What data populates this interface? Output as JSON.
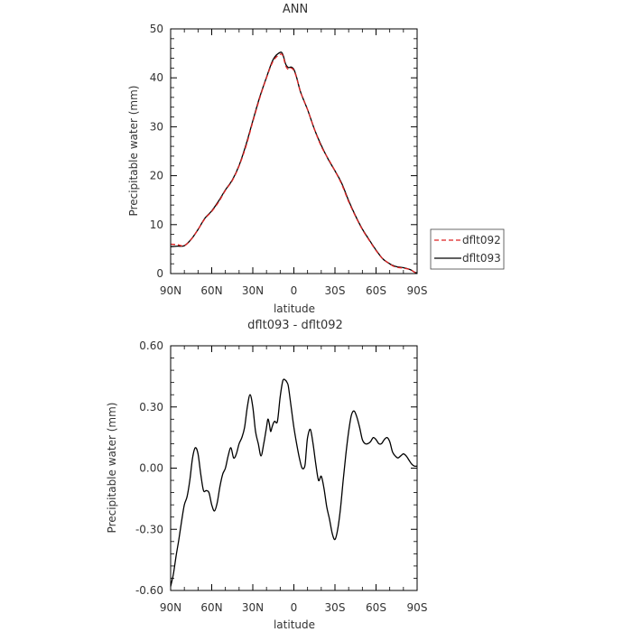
{
  "chart_data": [
    {
      "type": "line",
      "title": "ANN",
      "xlabel": "latitude",
      "ylabel": "Precipitable water (mm)",
      "xlim": [
        90,
        -90
      ],
      "ylim": [
        0,
        50
      ],
      "x_ticks": [
        90,
        60,
        30,
        0,
        -30,
        -60,
        -90
      ],
      "x_tick_labels": [
        "90N",
        "60N",
        "30N",
        "0",
        "30S",
        "60S",
        "90S"
      ],
      "y_ticks": [
        0,
        10,
        20,
        30,
        40,
        50
      ],
      "y_tick_labels": [
        "0",
        "10",
        "20",
        "30",
        "40",
        "50"
      ],
      "grid": false,
      "legend_position": "right",
      "series": [
        {
          "name": "dflt092",
          "color": "#dd2222",
          "dash": "dashed",
          "x": [
            90,
            85,
            80,
            75,
            70,
            65,
            60,
            55,
            50,
            45,
            40,
            35,
            30,
            25,
            20,
            15,
            10,
            8,
            6,
            4,
            2,
            0,
            -2,
            -5,
            -10,
            -15,
            -20,
            -25,
            -30,
            -35,
            -40,
            -45,
            -50,
            -55,
            -60,
            -65,
            -70,
            -72,
            -75,
            -80,
            -85,
            -88,
            -90
          ],
          "y": [
            6.0,
            5.9,
            5.7,
            7.0,
            9.0,
            11.2,
            12.7,
            14.6,
            17.0,
            19.0,
            22.0,
            26.0,
            31.0,
            35.8,
            40.0,
            43.5,
            44.8,
            44.5,
            42.5,
            41.7,
            42.0,
            41.5,
            40.0,
            37.0,
            33.5,
            29.5,
            26.0,
            23.5,
            21.0,
            18.2,
            14.7,
            11.7,
            9.0,
            6.8,
            4.7,
            3.0,
            2.0,
            1.6,
            1.3,
            1.1,
            0.8,
            0.3,
            0.1
          ]
        },
        {
          "name": "dflt093",
          "color": "#000000",
          "dash": "solid",
          "x": [
            90,
            85,
            80,
            75,
            70,
            65,
            60,
            55,
            50,
            45,
            40,
            35,
            30,
            25,
            20,
            15,
            10,
            8,
            6,
            4,
            2,
            0,
            -2,
            -5,
            -10,
            -15,
            -20,
            -25,
            -30,
            -35,
            -40,
            -45,
            -50,
            -55,
            -60,
            -65,
            -70,
            -72,
            -75,
            -80,
            -85,
            -88,
            -90
          ],
          "y": [
            5.5,
            5.6,
            5.7,
            7.0,
            9.0,
            11.3,
            12.8,
            14.8,
            17.1,
            19.1,
            22.1,
            26.3,
            31.2,
            36.0,
            40.1,
            43.8,
            45.2,
            44.7,
            42.8,
            42.1,
            42.2,
            41.7,
            40.1,
            37.0,
            33.5,
            29.5,
            26.2,
            23.4,
            21.0,
            18.4,
            14.9,
            11.8,
            9.1,
            6.9,
            4.8,
            3.0,
            2.0,
            1.7,
            1.4,
            1.2,
            0.8,
            0.3,
            0.1
          ]
        }
      ]
    },
    {
      "type": "line",
      "title": "dflt093 - dflt092",
      "xlabel": "latitude",
      "ylabel": "Precipitable water (mm)",
      "xlim": [
        90,
        -90
      ],
      "ylim": [
        -0.6,
        0.6
      ],
      "x_ticks": [
        90,
        60,
        30,
        0,
        -30,
        -60,
        -90
      ],
      "x_tick_labels": [
        "90N",
        "60N",
        "30N",
        "0",
        "30S",
        "60S",
        "90S"
      ],
      "y_ticks": [
        -0.6,
        -0.3,
        0.0,
        0.3,
        0.6
      ],
      "y_tick_labels": [
        "-0.60",
        "-0.30",
        "0.00",
        "0.30",
        "0.60"
      ],
      "grid": false,
      "series": [
        {
          "color": "#000000",
          "dash": "solid",
          "x": [
            90,
            88,
            86,
            84,
            82,
            80,
            78,
            76,
            74,
            72,
            70,
            68,
            66,
            64,
            62,
            60,
            58,
            56,
            54,
            52,
            50,
            48,
            46,
            44,
            42,
            40,
            38,
            36,
            34,
            32,
            30,
            28,
            26,
            24,
            22,
            20,
            19,
            18,
            17,
            16,
            15,
            14,
            12,
            10,
            8,
            6,
            5,
            4,
            2,
            0,
            -2,
            -4,
            -6,
            -8,
            -9,
            -10,
            -12,
            -14,
            -16,
            -18,
            -20,
            -22,
            -24,
            -26,
            -28,
            -30,
            -32,
            -34,
            -36,
            -38,
            -40,
            -42,
            -44,
            -46,
            -48,
            -50,
            -52,
            -54,
            -56,
            -58,
            -60,
            -62,
            -64,
            -66,
            -68,
            -70,
            -72,
            -74,
            -76,
            -78,
            -80,
            -82,
            -84,
            -86,
            -88,
            -90
          ],
          "y": [
            -0.58,
            -0.52,
            -0.43,
            -0.35,
            -0.26,
            -0.18,
            -0.14,
            -0.06,
            0.05,
            0.1,
            0.07,
            -0.03,
            -0.11,
            -0.11,
            -0.12,
            -0.18,
            -0.21,
            -0.17,
            -0.09,
            -0.03,
            0.0,
            0.06,
            0.1,
            0.05,
            0.07,
            0.12,
            0.15,
            0.2,
            0.3,
            0.36,
            0.3,
            0.18,
            0.12,
            0.06,
            0.12,
            0.2,
            0.24,
            0.22,
            0.18,
            0.2,
            0.22,
            0.23,
            0.23,
            0.35,
            0.43,
            0.43,
            0.42,
            0.4,
            0.3,
            0.2,
            0.12,
            0.05,
            0.0,
            0.01,
            0.08,
            0.15,
            0.19,
            0.12,
            0.02,
            -0.06,
            -0.04,
            -0.1,
            -0.19,
            -0.25,
            -0.32,
            -0.35,
            -0.3,
            -0.2,
            -0.06,
            0.07,
            0.18,
            0.26,
            0.28,
            0.25,
            0.2,
            0.14,
            0.12,
            0.12,
            0.13,
            0.15,
            0.14,
            0.12,
            0.12,
            0.14,
            0.15,
            0.13,
            0.08,
            0.06,
            0.05,
            0.06,
            0.07,
            0.06,
            0.04,
            0.02,
            0.01,
            0.01
          ]
        }
      ]
    }
  ]
}
